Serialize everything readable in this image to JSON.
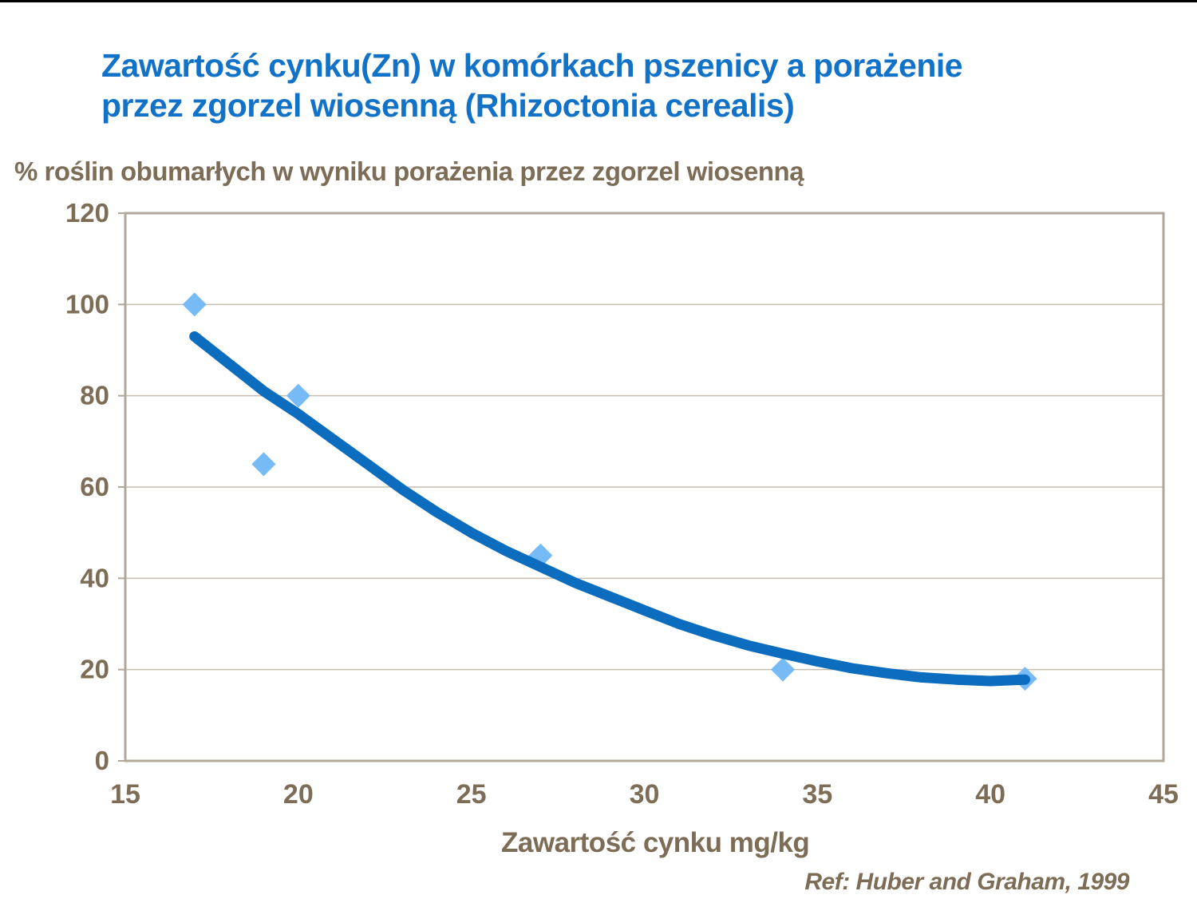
{
  "page": {
    "background_color": "#FFFFFF",
    "top_strip_color": "#000000"
  },
  "title": {
    "lines": [
      "Zawartość cynku(Zn) w komórkach pszenicy a porażenie",
      "przez zgorzel wiosenną (Rhizoctonia cerealis)"
    ],
    "color": "#1272C8"
  },
  "chart_data": {
    "type": "scatter",
    "title": "Zawartość cynku(Zn) w komórkach pszenicy a porażenie przez zgorzel wiosenną (Rhizoctonia cerealis)",
    "y_axis_title": "% roślin obumarłych w wyniku porażenia przez zgorzel wiosenną",
    "x_axis_title": "Zawartość cynku mg/kg",
    "reference": "Ref: Huber and Graham, 1999",
    "xlim": [
      15,
      45
    ],
    "ylim": [
      0,
      120
    ],
    "x_ticks": [
      "15",
      "20",
      "25",
      "30",
      "35",
      "40",
      "45"
    ],
    "x_tick_values": [
      15,
      20,
      25,
      30,
      35,
      40,
      45
    ],
    "y_ticks": [
      "0",
      "20",
      "40",
      "60",
      "80",
      "100",
      "120"
    ],
    "y_tick_values": [
      0,
      20,
      40,
      60,
      80,
      100,
      120
    ],
    "grid": "horizontal-only",
    "legend": "none",
    "series": [
      {
        "name": "obserwacje",
        "type": "scatter",
        "marker": "diamond",
        "color": "#76BBF5",
        "marker_half_size": 15,
        "points": [
          [
            17,
            100
          ],
          [
            19,
            65
          ],
          [
            20,
            80
          ],
          [
            27,
            45
          ],
          [
            34,
            20
          ],
          [
            41,
            18
          ]
        ]
      },
      {
        "name": "krzywa trendu",
        "type": "line",
        "color": "#0C6DBF",
        "stroke_width": 13,
        "points": [
          [
            17,
            93
          ],
          [
            18,
            87
          ],
          [
            19,
            81
          ],
          [
            20,
            76
          ],
          [
            21,
            70.5
          ],
          [
            22,
            65
          ],
          [
            23,
            59.5
          ],
          [
            24,
            54.5
          ],
          [
            25,
            50
          ],
          [
            26,
            46
          ],
          [
            27,
            42.5
          ],
          [
            28,
            39
          ],
          [
            29,
            36
          ],
          [
            30,
            33
          ],
          [
            31,
            30
          ],
          [
            32,
            27.5
          ],
          [
            33,
            25.3
          ],
          [
            34,
            23.5
          ],
          [
            35,
            21.8
          ],
          [
            36,
            20.3
          ],
          [
            37,
            19.2
          ],
          [
            38,
            18.3
          ],
          [
            39,
            17.8
          ],
          [
            40,
            17.5
          ],
          [
            41,
            17.8
          ]
        ]
      }
    ],
    "colors": {
      "axis_text": "#7D6D57",
      "plot_border": "#B2A79B",
      "gridline": "#C8BEB0"
    }
  }
}
